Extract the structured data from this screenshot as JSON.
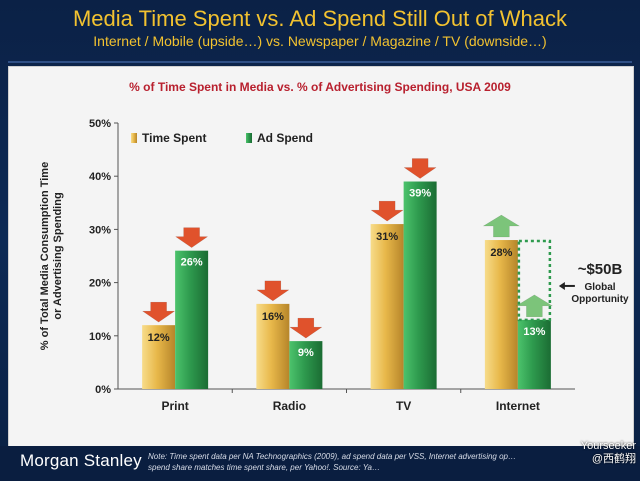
{
  "header": {
    "title": "Media Time Spent vs. Ad Spend Still Out of Whack",
    "subtitle": "Internet / Mobile (upside…) vs. Newspaper / Magazine / TV (downside…)"
  },
  "chart_data": {
    "type": "bar",
    "title": "% of Time Spent in Media vs. % of Advertising Spending, USA 2009",
    "ylabel": "% of Total Media Consumption Time or Advertising Spending",
    "xlabel": "",
    "categories": [
      "Print",
      "Radio",
      "TV",
      "Internet"
    ],
    "series": [
      {
        "name": "Time Spent",
        "values": [
          12,
          16,
          31,
          28
        ],
        "labels": [
          "12%",
          "16%",
          "31%",
          "28%"
        ],
        "color": "#e8b84a"
      },
      {
        "name": "Ad Spend",
        "values": [
          26,
          9,
          39,
          13
        ],
        "labels": [
          "26%",
          "9%",
          "39%",
          "13%"
        ],
        "color": "#2e9a4e"
      }
    ],
    "ylim": [
      0,
      50
    ],
    "yticks": [
      0,
      10,
      20,
      30,
      40,
      50
    ],
    "ytick_labels": [
      "0%",
      "10%",
      "20%",
      "30%",
      "40%",
      "50%"
    ],
    "legend_position": "top-left",
    "grid": false,
    "arrows": [
      {
        "category": "Print",
        "series": "Time Spent",
        "direction": "down",
        "color": "#e0522c"
      },
      {
        "category": "Print",
        "series": "Ad Spend",
        "direction": "down",
        "color": "#e0522c"
      },
      {
        "category": "Radio",
        "series": "Time Spent",
        "direction": "down",
        "color": "#e0522c"
      },
      {
        "category": "Radio",
        "series": "Ad Spend",
        "direction": "down",
        "color": "#e0522c"
      },
      {
        "category": "TV",
        "series": "Time Spent",
        "direction": "down",
        "color": "#e0522c"
      },
      {
        "category": "TV",
        "series": "Ad Spend",
        "direction": "down",
        "color": "#e0522c"
      },
      {
        "category": "Internet",
        "series": "Time Spent",
        "direction": "up",
        "color": "#7cc47a"
      },
      {
        "category": "Internet",
        "series": "Ad Spend",
        "direction": "up",
        "color": "#7cc47a"
      }
    ],
    "opportunity": {
      "category": "Internet",
      "from": 13,
      "to": 28,
      "value_label": "~$50B",
      "text_line1": "Global",
      "text_line2": "Opportunity",
      "color": "#2e9a4e"
    }
  },
  "footer": {
    "logo": "Morgan Stanley",
    "note": "Note: Time spent data per NA Technographics (2009), ad spend data per VSS, Internet advertising op… spend share matches time spent share, per Yahoo!. Source: Ya…",
    "watermark_line1": "Yourseeker",
    "watermark_line2": "@西鹤翔"
  }
}
